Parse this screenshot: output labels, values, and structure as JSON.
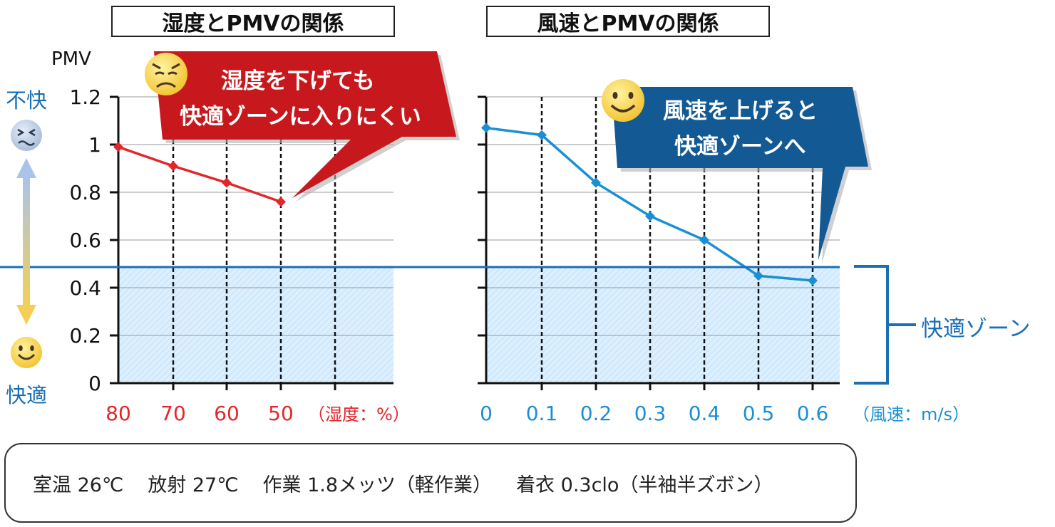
{
  "titles": {
    "left": "湿度とPMVの関係",
    "right": "風速とPMVの関係"
  },
  "y_axis": {
    "label": "PMV",
    "top_label": "不快",
    "bottom_label": "快適"
  },
  "callouts": {
    "left": [
      "湿度を下げても",
      "快適ゾーンに入りにくい"
    ],
    "right": [
      "風速を上げると",
      "快適ゾーンへ"
    ]
  },
  "zone_label": "快適ゾーン",
  "conditions": [
    "室温 26℃",
    "放射 27℃",
    "作業 1.8メッツ（軽作業）",
    "着衣 0.3clo（半袖半ズボン）"
  ],
  "colors": {
    "humidity": "#e3262a",
    "wind": "#1a8fd4",
    "zone": "#1a6fb5",
    "callout_red": "#c7191d",
    "callout_blue": "#135a94"
  },
  "chart_data": [
    {
      "type": "line",
      "title": "湿度とPMVの関係",
      "xlabel": "（湿度：%）",
      "ylabel": "PMV",
      "ylim": [
        0,
        1.2
      ],
      "yticks": [
        "0",
        "0.2",
        "0.4",
        "0.6",
        "0.8",
        "1",
        "1.2"
      ],
      "categories": [
        "80",
        "70",
        "60",
        "50"
      ],
      "values": [
        0.99,
        0.91,
        0.84,
        0.76
      ],
      "comfort_zone": [
        0,
        0.49
      ],
      "grid": true
    },
    {
      "type": "line",
      "title": "風速とPMVの関係",
      "xlabel": "（風速：m/s）",
      "ylabel": "PMV",
      "ylim": [
        0,
        1.2
      ],
      "categories": [
        "0",
        "0.1",
        "0.2",
        "0.3",
        "0.4",
        "0.5",
        "0.6"
      ],
      "values": [
        1.07,
        1.04,
        0.84,
        0.7,
        0.6,
        0.45,
        0.43
      ],
      "comfort_zone": [
        0,
        0.49
      ],
      "grid": true
    }
  ]
}
